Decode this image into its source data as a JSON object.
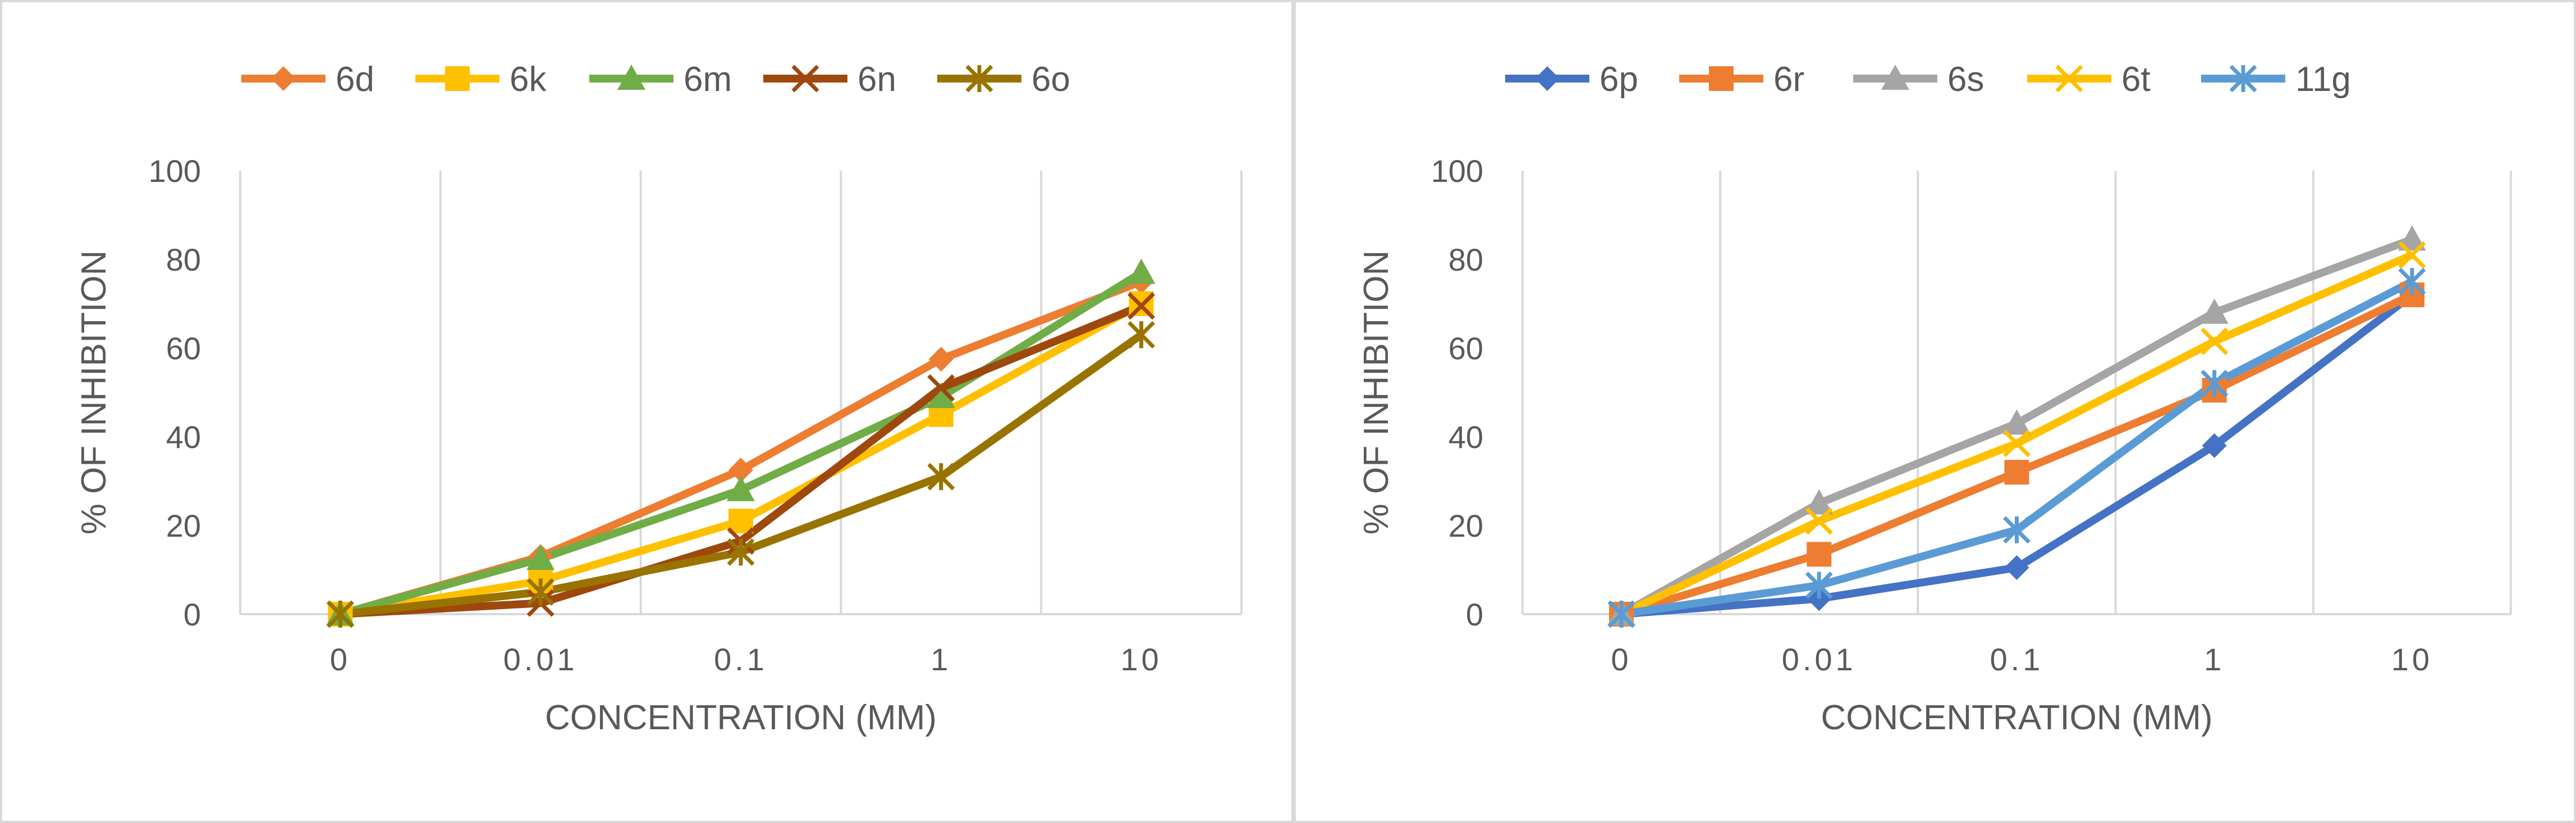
{
  "chart_data": [
    {
      "type": "line",
      "title": "",
      "xlabel": "CONCENTRATION (MM)",
      "ylabel": "% OF INHIBITION",
      "categories": [
        "0",
        "0.01",
        "0.1",
        "1",
        "10"
      ],
      "ylim": [
        0,
        100
      ],
      "yticks": [
        "0",
        "20",
        "40",
        "60",
        "80",
        "100"
      ],
      "grid": "vertical",
      "legend": "top",
      "series": [
        {
          "name": "6d",
          "color": "#ED7D31",
          "marker": "diamond",
          "values": [
            0,
            13,
            32.5,
            57.5,
            75
          ]
        },
        {
          "name": "6k",
          "color": "#FFC000",
          "marker": "square",
          "values": [
            0,
            7.5,
            21,
            45,
            70
          ]
        },
        {
          "name": "6m",
          "color": "#70AD47",
          "marker": "triangle",
          "values": [
            0,
            12.5,
            28,
            49,
            77
          ]
        },
        {
          "name": "6n",
          "color": "#9E480E",
          "marker": "x",
          "values": [
            0,
            2.5,
            16.5,
            51,
            69.5
          ]
        },
        {
          "name": "6o",
          "color": "#997300",
          "marker": "star",
          "values": [
            0,
            5,
            14,
            31,
            63
          ]
        }
      ]
    },
    {
      "type": "line",
      "title": "",
      "xlabel": "CONCENTRATION (MM)",
      "ylabel": "% OF INHIBITION",
      "categories": [
        "0",
        "0.01",
        "0.1",
        "1",
        "10"
      ],
      "ylim": [
        0,
        100
      ],
      "yticks": [
        "0",
        "20",
        "40",
        "60",
        "80",
        "100"
      ],
      "grid": "vertical",
      "legend": "top",
      "series": [
        {
          "name": "6p",
          "color": "#4472C4",
          "marker": "diamond",
          "values": [
            0,
            3.5,
            10.5,
            38,
            72
          ]
        },
        {
          "name": "6r",
          "color": "#ED7D31",
          "marker": "square",
          "values": [
            0,
            13.5,
            32,
            50.5,
            72
          ]
        },
        {
          "name": "6s",
          "color": "#A5A5A5",
          "marker": "triangle",
          "values": [
            0,
            25,
            43,
            68,
            84.5
          ]
        },
        {
          "name": "6t",
          "color": "#FFC000",
          "marker": "x",
          "values": [
            0,
            21,
            38.5,
            61.5,
            81
          ]
        },
        {
          "name": "11g",
          "color": "#5B9BD5",
          "marker": "star",
          "values": [
            0,
            6.5,
            19,
            52,
            75
          ]
        }
      ]
    }
  ]
}
